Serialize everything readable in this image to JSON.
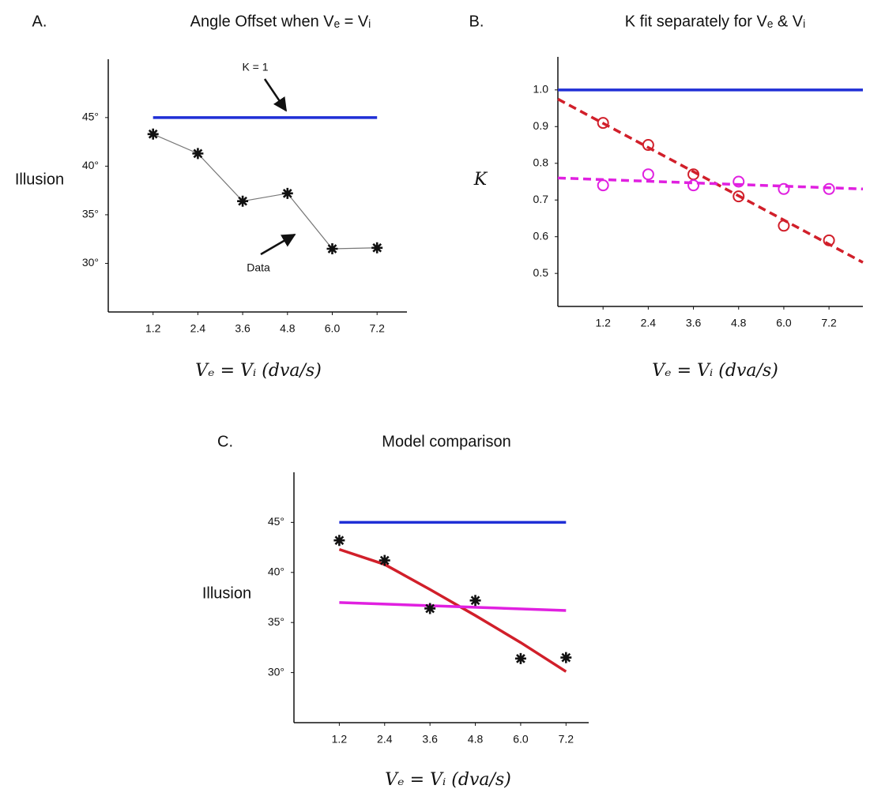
{
  "chart_data": [
    {
      "type": "line",
      "panel_label": "A.",
      "title": "Angle Offset when Vₑ = Vᵢ",
      "ylabel": "Illusion",
      "xlabel": "Vₑ = Vᵢ (dva/s)",
      "xlim": [
        0,
        8
      ],
      "ylim": [
        25,
        51
      ],
      "xticks": [
        1.2,
        2.4,
        3.6,
        4.8,
        {
          "value": 6,
          "label": "6.0"
        },
        7.2
      ],
      "yticks": [
        {
          "value": 30,
          "label": "30°"
        },
        {
          "value": 35,
          "label": "35°"
        },
        {
          "value": 40,
          "label": "40°"
        },
        {
          "value": 45,
          "label": "45°"
        }
      ],
      "series": [
        {
          "color": "#1f2fd6",
          "x": [
            1.2,
            7.2
          ],
          "values": [
            45,
            45
          ],
          "marker": "none",
          "dashed": false
        },
        {
          "color": "#777777",
          "x": [
            1.2,
            2.4,
            3.6,
            4.8,
            6.0,
            7.2
          ],
          "values": [
            43.3,
            41.3,
            36.4,
            37.2,
            31.5,
            31.6
          ],
          "marker": "star",
          "dashed": false
        }
      ],
      "annotations": [
        {
          "text": "K = 1"
        },
        {
          "text": "Data"
        }
      ]
    },
    {
      "type": "line",
      "panel_label": "B.",
      "title": "K fit separately for Vₑ & Vᵢ",
      "ylabel": "K",
      "xlabel": "Vₑ = Vᵢ (dva/s)",
      "xlim": [
        0,
        8.1
      ],
      "ylim": [
        0.41,
        1.09
      ],
      "xticks": [
        1.2,
        2.4,
        3.6,
        4.8,
        {
          "value": 6,
          "label": "6.0"
        },
        7.2
      ],
      "yticks": [
        0.5,
        0.6,
        0.7,
        0.8,
        0.9,
        {
          "value": 1,
          "label": "1.0"
        }
      ],
      "series": [
        {
          "color": "#1f2fd6",
          "x": [
            0,
            8.1
          ],
          "values": [
            1,
            1
          ],
          "marker": "none",
          "dashed": false
        },
        {
          "color": "#d11f2a",
          "x": [
            0,
            8.1
          ],
          "values": [
            0.975,
            0.53
          ],
          "marker": "none",
          "dashed": true
        },
        {
          "color": "#e020e0",
          "x": [
            0,
            8.1
          ],
          "values": [
            0.76,
            0.73
          ],
          "marker": "none",
          "dashed": true
        },
        {
          "color": "#d11f2a",
          "x": [
            1.2,
            2.4,
            3.6,
            4.8,
            6.0,
            7.2
          ],
          "values": [
            0.91,
            0.85,
            0.77,
            0.71,
            0.63,
            0.59
          ],
          "marker": "circle",
          "dashed": false,
          "no_line": true
        },
        {
          "color": "#e020e0",
          "x": [
            1.2,
            2.4,
            3.6,
            4.8,
            6.0,
            7.2
          ],
          "values": [
            0.74,
            0.77,
            0.74,
            0.75,
            0.73,
            0.73
          ],
          "marker": "circle",
          "dashed": false,
          "no_line": true
        }
      ]
    },
    {
      "type": "line",
      "panel_label": "C.",
      "title": "Model comparison",
      "ylabel": "Illusion",
      "xlabel": "Vₑ = Vᵢ (dva/s)",
      "xlim": [
        0,
        7.8
      ],
      "ylim": [
        25,
        50
      ],
      "xticks": [
        1.2,
        2.4,
        3.6,
        4.8,
        {
          "value": 6,
          "label": "6.0"
        },
        7.2
      ],
      "yticks": [
        {
          "value": 30,
          "label": "30°"
        },
        {
          "value": 35,
          "label": "35°"
        },
        {
          "value": 40,
          "label": "40°"
        },
        {
          "value": 45,
          "label": "45°"
        }
      ],
      "series": [
        {
          "color": "#1f2fd6",
          "x": [
            1.2,
            7.2
          ],
          "values": [
            45,
            45
          ],
          "marker": "none",
          "dashed": false
        },
        {
          "color": "#d11f2a",
          "x": [
            1.2,
            2.4,
            3.6,
            4.8,
            6.0,
            7.2
          ],
          "values": [
            42.3,
            40.8,
            38.3,
            35.7,
            33.0,
            30.1
          ],
          "marker": "none",
          "dashed": false
        },
        {
          "color": "#e020e0",
          "x": [
            1.2,
            7.2
          ],
          "values": [
            37.0,
            36.2
          ],
          "marker": "none",
          "dashed": false
        },
        {
          "color": "#111111",
          "x": [
            1.2,
            2.4,
            3.6,
            4.8,
            6.0,
            7.2
          ],
          "values": [
            43.2,
            41.2,
            36.4,
            37.2,
            31.4,
            31.5
          ],
          "marker": "star",
          "dashed": false,
          "no_line": true
        }
      ]
    }
  ]
}
